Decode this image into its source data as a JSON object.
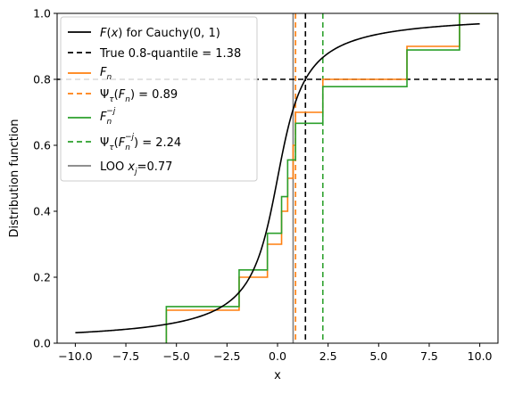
{
  "chart_data": {
    "type": "line",
    "xlabel": "x",
    "ylabel": "Distribution function",
    "xlim": [
      -10.9,
      10.9
    ],
    "ylim": [
      0.0,
      1.0
    ],
    "x_ticks": [
      -10.0,
      -7.5,
      -5.0,
      -2.5,
      0.0,
      2.5,
      5.0,
      7.5,
      10.0
    ],
    "x_tick_labels": [
      "−10.0",
      "−7.5",
      "−5.0",
      "−2.5",
      "0.0",
      "2.5",
      "5.0",
      "7.5",
      "10.0"
    ],
    "y_ticks": [
      0.0,
      0.2,
      0.4,
      0.6,
      0.8,
      1.0
    ],
    "y_tick_labels": [
      "0.0",
      "0.2",
      "0.4",
      "0.6",
      "0.8",
      "1.0"
    ],
    "grid": false,
    "legend_position": "top-left",
    "cdf_curve": {
      "label": "F(x) for Cauchy(0, 1)",
      "x_range": [
        -10.0,
        10.0
      ],
      "color": "#000000"
    },
    "horizontal_line": {
      "y": 0.8,
      "color": "#000000"
    },
    "true_quantile": {
      "label": "True 0.8-quantile = 1.38",
      "x": 1.38,
      "color": "#000000"
    },
    "Fn": {
      "label_main": "F",
      "label_sub": "n",
      "color": "#ff7f0e",
      "x": [
        -5.5,
        -1.9,
        -0.5,
        0.2,
        0.5,
        0.77,
        0.89,
        2.24,
        6.4,
        9.0
      ],
      "y": [
        0.1,
        0.2,
        0.3,
        0.4,
        0.5,
        0.6,
        0.7,
        0.8,
        0.9,
        1.0
      ]
    },
    "psi_Fn": {
      "label": "Ψτ(Fn) = 0.89",
      "x": 0.89,
      "color": "#ff7f0e"
    },
    "Fn_loo": {
      "label_main": "F",
      "label_sub": "n",
      "label_sup": "−j",
      "color": "#2ca02c",
      "x": [
        -5.5,
        -1.9,
        -0.5,
        0.2,
        0.5,
        0.89,
        2.24,
        6.4,
        9.0
      ],
      "y": [
        0.1111,
        0.2222,
        0.3333,
        0.4444,
        0.5556,
        0.6667,
        0.7778,
        0.8889,
        1.0
      ]
    },
    "psi_Fn_loo": {
      "label": "Ψτ(Fn−j) = 2.24",
      "x": 2.24,
      "color": "#2ca02c"
    },
    "loo_point": {
      "label": "LOO xj=0.77",
      "x": 0.77,
      "color": "#7f7f7f"
    }
  }
}
